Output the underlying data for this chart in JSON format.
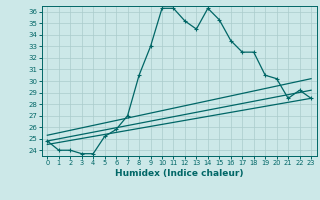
{
  "xlabel": "Humidex (Indice chaleur)",
  "bg_color": "#cce8e8",
  "grid_color": "#aacccc",
  "line_color": "#006666",
  "xlim": [
    -0.5,
    23.5
  ],
  "ylim": [
    23.5,
    36.5
  ],
  "yticks": [
    24,
    25,
    26,
    27,
    28,
    29,
    30,
    31,
    32,
    33,
    34,
    35,
    36
  ],
  "xticks": [
    0,
    1,
    2,
    3,
    4,
    5,
    6,
    7,
    8,
    9,
    10,
    11,
    12,
    13,
    14,
    15,
    16,
    17,
    18,
    19,
    20,
    21,
    22,
    23
  ],
  "series1_x": [
    0,
    1,
    2,
    3,
    4,
    5,
    6,
    7,
    8,
    9,
    10,
    11,
    12,
    13,
    14,
    15,
    16,
    17,
    18,
    19,
    20,
    21,
    22,
    23
  ],
  "series1_y": [
    24.8,
    24.0,
    24.0,
    23.7,
    23.7,
    25.2,
    25.8,
    27.0,
    30.5,
    33.0,
    36.3,
    36.3,
    35.2,
    34.5,
    36.3,
    35.3,
    33.5,
    32.5,
    32.5,
    30.5,
    30.2,
    28.5,
    29.2,
    28.5
  ],
  "series2_x": [
    0,
    23
  ],
  "series2_y": [
    24.5,
    28.5
  ],
  "series3_x": [
    0,
    23
  ],
  "series3_y": [
    24.8,
    29.2
  ],
  "series4_x": [
    0,
    23
  ],
  "series4_y": [
    25.3,
    30.2
  ]
}
